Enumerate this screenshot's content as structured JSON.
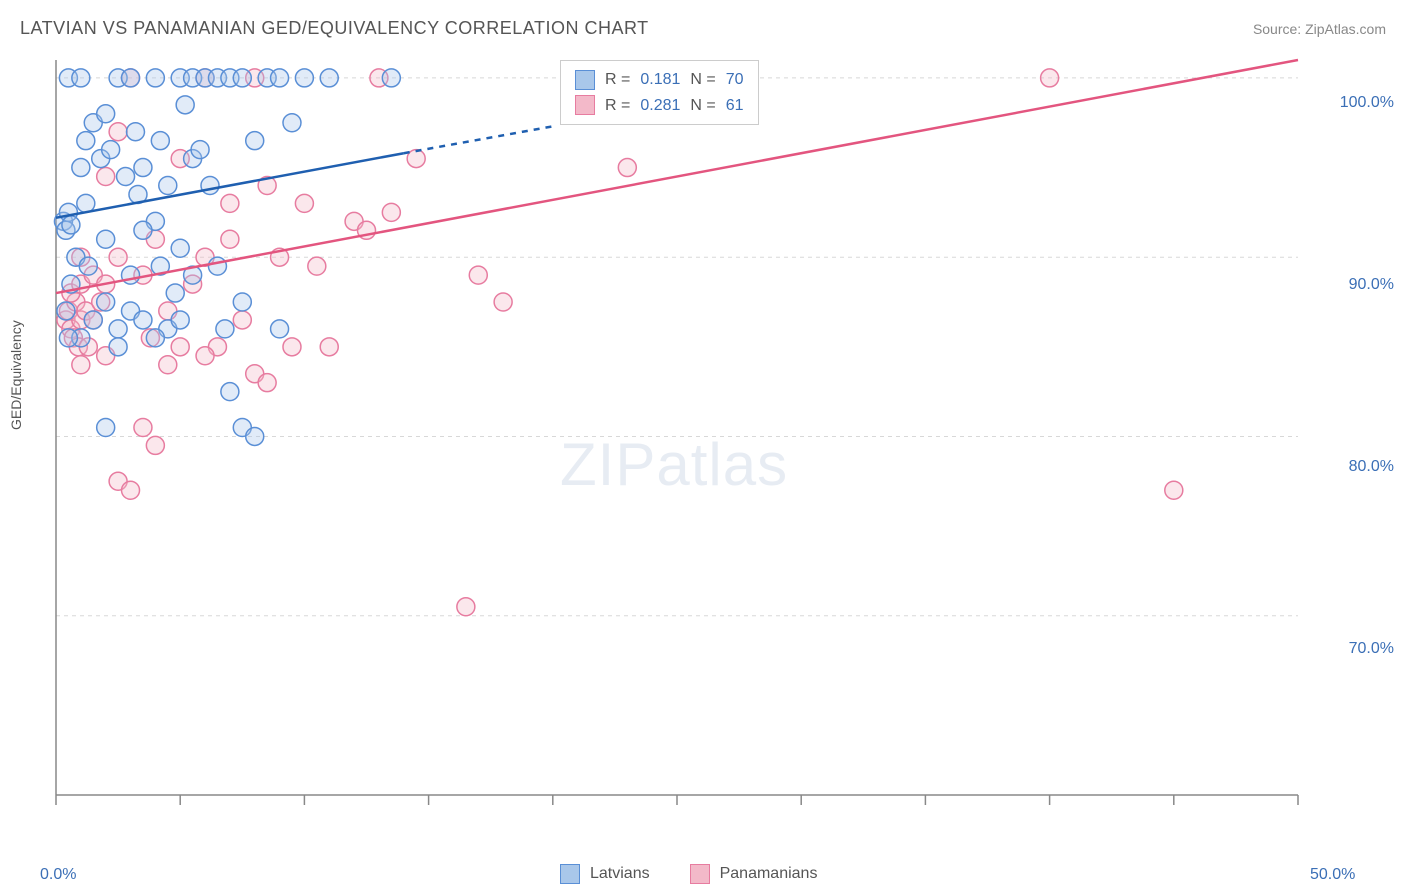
{
  "title": "LATVIAN VS PANAMANIAN GED/EQUIVALENCY CORRELATION CHART",
  "source": "Source: ZipAtlas.com",
  "ylabel": "GED/Equivalency",
  "watermark": {
    "bold": "ZIP",
    "light": "atlas"
  },
  "chart": {
    "type": "scatter",
    "background_color": "#ffffff",
    "grid_color": "#d8d8d8",
    "grid_dash": "4,4",
    "axis_color": "#888888",
    "tick_label_color": "#3b6fb6",
    "tick_fontsize": 16,
    "xlim": [
      0,
      50
    ],
    "ylim": [
      60,
      101
    ],
    "x_ticks": [
      0,
      5,
      10,
      15,
      20,
      25,
      30,
      35,
      40,
      45,
      50
    ],
    "x_tick_labels": {
      "0": "0.0%",
      "50": "50.0%"
    },
    "y_ticks": [
      70,
      80,
      90,
      100
    ],
    "y_tick_labels": {
      "70": "70.0%",
      "80": "80.0%",
      "90": "90.0%",
      "100": "100.0%"
    },
    "marker_radius": 9,
    "marker_fill_opacity": 0.35,
    "marker_stroke_width": 1.5,
    "trend_line_width": 2.5
  },
  "series": [
    {
      "name": "Latvians",
      "color_fill": "#a9c7ea",
      "color_stroke": "#5a8fd6",
      "color_line": "#1f5fb0",
      "R": "0.181",
      "N": "70",
      "trend": {
        "x1": 0,
        "y1": 92.2,
        "x2": 14,
        "y2": 95.8,
        "dash_x2": 20,
        "dash_y2": 97.3
      },
      "points": [
        [
          0.3,
          92.0
        ],
        [
          0.4,
          91.5
        ],
        [
          0.5,
          92.5
        ],
        [
          0.6,
          91.8
        ],
        [
          0.5,
          100.0
        ],
        [
          1.0,
          100.0
        ],
        [
          1.2,
          96.5
        ],
        [
          1.0,
          95.0
        ],
        [
          1.5,
          97.5
        ],
        [
          1.2,
          93.0
        ],
        [
          1.8,
          95.5
        ],
        [
          2.0,
          98.0
        ],
        [
          2.5,
          100.0
        ],
        [
          2.2,
          96.0
        ],
        [
          2.8,
          94.5
        ],
        [
          3.0,
          100.0
        ],
        [
          3.2,
          97.0
        ],
        [
          3.5,
          95.0
        ],
        [
          3.3,
          93.5
        ],
        [
          4.0,
          100.0
        ],
        [
          4.2,
          96.5
        ],
        [
          4.5,
          94.0
        ],
        [
          4.0,
          92.0
        ],
        [
          5.0,
          100.0
        ],
        [
          5.2,
          98.5
        ],
        [
          5.5,
          95.5
        ],
        [
          5.0,
          90.5
        ],
        [
          5.5,
          100.0
        ],
        [
          6.0,
          100.0
        ],
        [
          5.8,
          96.0
        ],
        [
          6.5,
          100.0
        ],
        [
          6.2,
          94.0
        ],
        [
          7.0,
          100.0
        ],
        [
          7.5,
          100.0
        ],
        [
          8.0,
          96.5
        ],
        [
          8.5,
          100.0
        ],
        [
          9.0,
          100.0
        ],
        [
          9.5,
          97.5
        ],
        [
          10.0,
          100.0
        ],
        [
          11.0,
          100.0
        ],
        [
          13.5,
          100.0
        ],
        [
          0.8,
          90.0
        ],
        [
          1.3,
          89.5
        ],
        [
          2.0,
          91.0
        ],
        [
          3.0,
          89.0
        ],
        [
          3.5,
          91.5
        ],
        [
          4.2,
          89.5
        ],
        [
          4.8,
          88.0
        ],
        [
          5.5,
          89.0
        ],
        [
          6.5,
          89.5
        ],
        [
          1.5,
          86.5
        ],
        [
          2.0,
          87.5
        ],
        [
          2.5,
          86.0
        ],
        [
          3.0,
          87.0
        ],
        [
          3.5,
          86.5
        ],
        [
          4.5,
          86.0
        ],
        [
          5.0,
          86.5
        ],
        [
          6.8,
          86.0
        ],
        [
          7.5,
          87.5
        ],
        [
          9.0,
          86.0
        ],
        [
          1.0,
          85.5
        ],
        [
          2.5,
          85.0
        ],
        [
          4.0,
          85.5
        ],
        [
          7.0,
          82.5
        ],
        [
          7.5,
          80.5
        ],
        [
          8.0,
          80.0
        ],
        [
          2.0,
          80.5
        ],
        [
          0.6,
          88.5
        ],
        [
          0.4,
          87.0
        ],
        [
          0.5,
          85.5
        ]
      ]
    },
    {
      "name": "Panamanians",
      "color_fill": "#f3b9c9",
      "color_stroke": "#e77ca0",
      "color_line": "#e3557f",
      "R": "0.281",
      "N": "61",
      "trend": {
        "x1": 0,
        "y1": 88.0,
        "x2": 50,
        "y2": 101.0
      },
      "points": [
        [
          0.4,
          86.5
        ],
        [
          0.5,
          87.0
        ],
        [
          0.6,
          86.0
        ],
        [
          0.8,
          87.5
        ],
        [
          1.0,
          86.5
        ],
        [
          0.7,
          85.5
        ],
        [
          1.2,
          87.0
        ],
        [
          0.6,
          88.0
        ],
        [
          0.9,
          85.0
        ],
        [
          1.0,
          88.5
        ],
        [
          1.5,
          86.5
        ],
        [
          1.3,
          85.0
        ],
        [
          1.8,
          87.5
        ],
        [
          1.0,
          90.0
        ],
        [
          1.5,
          89.0
        ],
        [
          2.0,
          88.5
        ],
        [
          2.5,
          90.0
        ],
        [
          2.0,
          94.5
        ],
        [
          2.5,
          97.0
        ],
        [
          3.0,
          100.0
        ],
        [
          3.5,
          89.0
        ],
        [
          3.8,
          85.5
        ],
        [
          4.0,
          91.0
        ],
        [
          4.5,
          87.0
        ],
        [
          5.0,
          95.5
        ],
        [
          5.0,
          85.0
        ],
        [
          5.5,
          88.5
        ],
        [
          6.0,
          100.0
        ],
        [
          6.0,
          90.0
        ],
        [
          6.5,
          85.0
        ],
        [
          7.0,
          93.0
        ],
        [
          7.0,
          91.0
        ],
        [
          7.5,
          86.5
        ],
        [
          8.0,
          100.0
        ],
        [
          8.5,
          94.0
        ],
        [
          8.0,
          83.5
        ],
        [
          8.5,
          83.0
        ],
        [
          9.0,
          90.0
        ],
        [
          9.5,
          85.0
        ],
        [
          10.0,
          93.0
        ],
        [
          10.5,
          89.5
        ],
        [
          11.0,
          85.0
        ],
        [
          12.0,
          92.0
        ],
        [
          12.5,
          91.5
        ],
        [
          13.0,
          100.0
        ],
        [
          13.5,
          92.5
        ],
        [
          14.5,
          95.5
        ],
        [
          17.0,
          89.0
        ],
        [
          18.0,
          87.5
        ],
        [
          23.0,
          95.0
        ],
        [
          40.0,
          100.0
        ],
        [
          2.5,
          77.5
        ],
        [
          3.0,
          77.0
        ],
        [
          16.5,
          70.5
        ],
        [
          1.0,
          84.0
        ],
        [
          2.0,
          84.5
        ],
        [
          4.5,
          84.0
        ],
        [
          6.0,
          84.5
        ],
        [
          3.5,
          80.5
        ],
        [
          4.0,
          79.5
        ],
        [
          45.0,
          77.0
        ]
      ]
    }
  ],
  "stats_labels": {
    "R": "R =",
    "N": "N ="
  },
  "legend_labels": [
    "Latvians",
    "Panamanians"
  ]
}
